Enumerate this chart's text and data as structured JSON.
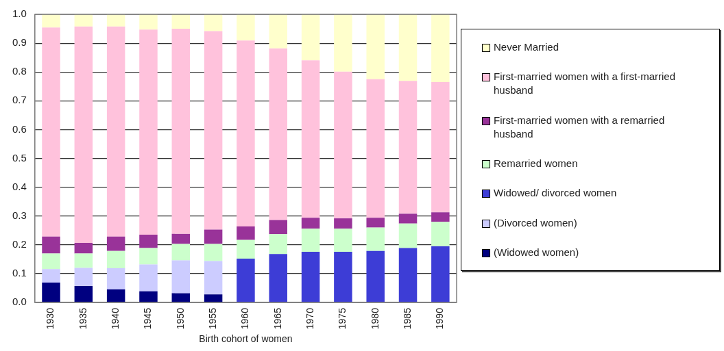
{
  "chart_data": {
    "type": "bar",
    "stacked": true,
    "xlabel": "Birth cohort of women",
    "categories": [
      "1930",
      "1935",
      "1940",
      "1945",
      "1950",
      "1955",
      "1960",
      "1965",
      "1970",
      "1975",
      "1980",
      "1985",
      "1990"
    ],
    "series": [
      {
        "name": "(Widowed women)",
        "color": "#000080",
        "values": [
          0.069,
          0.057,
          0.045,
          0.039,
          0.032,
          0.028,
          null,
          null,
          null,
          null,
          null,
          null,
          null
        ]
      },
      {
        "name": "(Divorced women)",
        "color": "#ccccff",
        "values": [
          0.047,
          0.063,
          0.074,
          0.093,
          0.114,
          0.116,
          null,
          null,
          null,
          null,
          null,
          null,
          null
        ]
      },
      {
        "name": "Widowed/ divorced women",
        "color": "#3d3dd6",
        "values": [
          null,
          null,
          null,
          null,
          null,
          null,
          0.152,
          0.168,
          0.176,
          0.176,
          0.179,
          0.189,
          0.195
        ]
      },
      {
        "name": "Remarried women",
        "color": "#ccffcc",
        "values": [
          0.054,
          0.05,
          0.06,
          0.057,
          0.057,
          0.059,
          0.065,
          0.069,
          0.08,
          0.08,
          0.081,
          0.085,
          0.085
        ]
      },
      {
        "name": "First-married women with a remarried husband",
        "color": "#993399",
        "values": [
          0.059,
          0.037,
          0.05,
          0.046,
          0.035,
          0.05,
          0.047,
          0.049,
          0.038,
          0.036,
          0.034,
          0.034,
          0.033
        ]
      },
      {
        "name": "First-married women with a first-married husband",
        "color": "#ffc2dc",
        "values": [
          0.725,
          0.751,
          0.729,
          0.712,
          0.712,
          0.689,
          0.645,
          0.596,
          0.546,
          0.509,
          0.481,
          0.461,
          0.452
        ]
      },
      {
        "name": "Never Married",
        "color": "#ffffcc",
        "values": [
          0.046,
          0.042,
          0.042,
          0.053,
          0.05,
          0.058,
          0.091,
          0.118,
          0.16,
          0.199,
          0.225,
          0.231,
          0.235
        ]
      }
    ],
    "ylim": [
      0,
      1
    ],
    "yticks": [
      {
        "value": 0,
        "label": "0.0"
      },
      {
        "value": 0.1,
        "label": "0.1"
      },
      {
        "value": 0.2,
        "label": "0.2"
      },
      {
        "value": 0.3,
        "label": "0.3"
      },
      {
        "value": 0.4,
        "label": "0.4"
      },
      {
        "value": 0.5,
        "label": "0.5"
      },
      {
        "value": 0.6,
        "label": "0.6"
      },
      {
        "value": 0.7,
        "label": "0.7"
      },
      {
        "value": 0.8,
        "label": "0.8"
      },
      {
        "value": 0.9,
        "label": "0.9"
      },
      {
        "value": 1,
        "label": "1.0"
      }
    ],
    "grid": "y",
    "legend": "right"
  }
}
